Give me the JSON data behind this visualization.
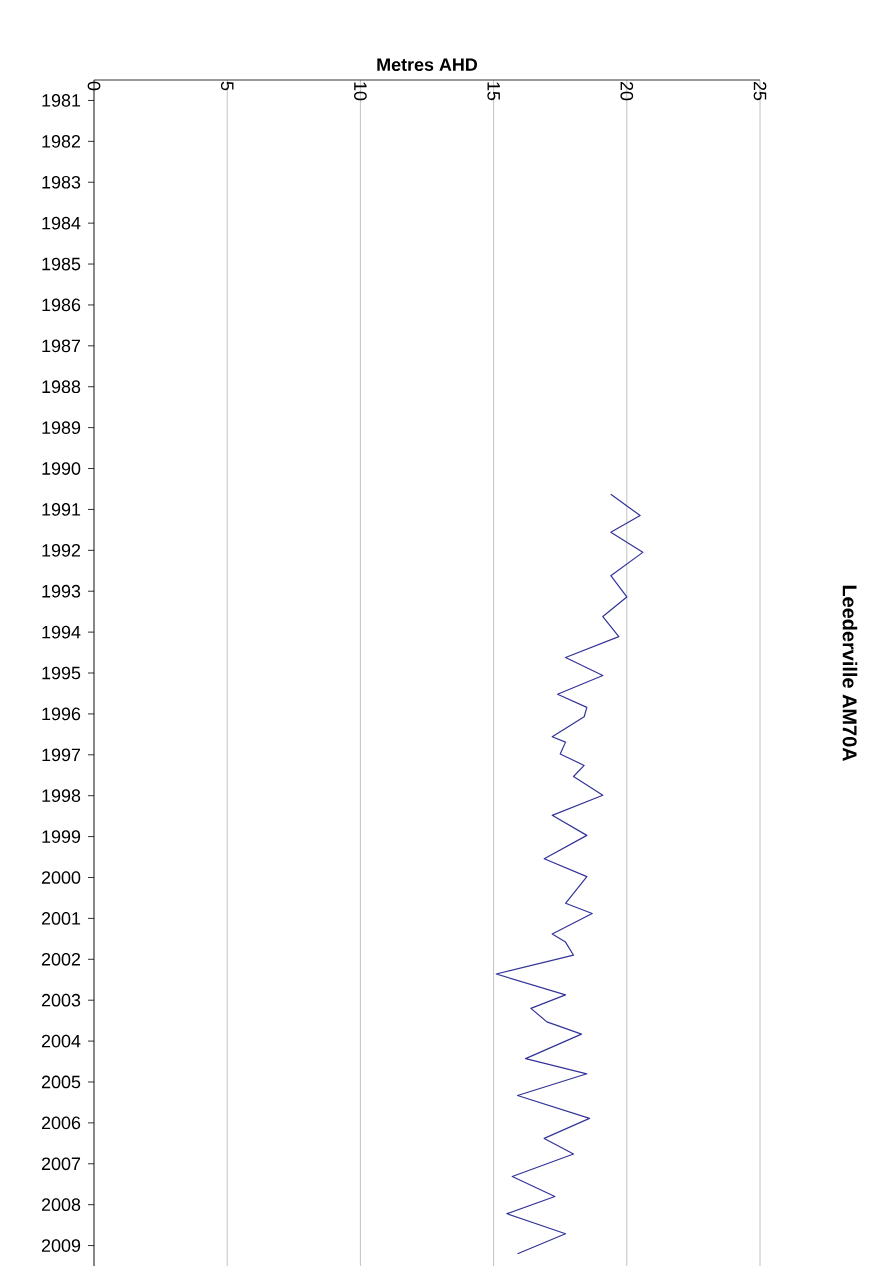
{
  "chart_data": {
    "type": "line",
    "title": "Leederville AM70A",
    "ylabel": "Metres AHD",
    "orientation": "horizontal",
    "grid": "x",
    "marker": "none",
    "ylim": [
      2009.5,
      1980.5
    ],
    "yticks": [
      1981,
      1982,
      1983,
      1984,
      1985,
      1986,
      1987,
      1988,
      1989,
      1990,
      1991,
      1992,
      1993,
      1994,
      1995,
      1996,
      1997,
      1998,
      1999,
      2000,
      2001,
      2002,
      2003,
      2004,
      2005,
      2006,
      2007,
      2008,
      2009
    ],
    "xlim": [
      0,
      25
    ],
    "xticks": [
      0,
      5,
      10,
      15,
      20,
      25
    ],
    "series": [
      {
        "color": "#333399",
        "x": [
          1990.63,
          1991.15,
          1991.56,
          1992.05,
          1992.62,
          1993.14,
          1993.62,
          1994.11,
          1994.62,
          1995.06,
          1995.52,
          1995.84,
          1996.07,
          1996.56,
          1996.69,
          1996.98,
          1997.26,
          1997.53,
          1997.99,
          1998.48,
          1998.97,
          1999.54,
          1999.98,
          2000.63,
          2000.88,
          2001.38,
          2001.58,
          2001.9,
          2002.36,
          2002.87,
          2003.2,
          2003.53,
          2003.83,
          2004.43,
          2004.8,
          2005.33,
          2005.89,
          2006.38,
          2006.76,
          2007.31,
          2007.8,
          2008.22,
          2008.71,
          2009.2
        ],
        "values": [
          19.4,
          20.5,
          19.4,
          20.6,
          19.4,
          20.0,
          19.1,
          19.7,
          17.7,
          19.1,
          17.4,
          18.5,
          18.4,
          17.2,
          17.7,
          17.5,
          18.4,
          18.0,
          19.1,
          17.2,
          18.5,
          16.9,
          18.5,
          17.7,
          18.7,
          17.2,
          17.7,
          18.0,
          15.1,
          17.7,
          16.4,
          17.0,
          18.3,
          16.2,
          18.5,
          15.9,
          18.6,
          16.9,
          18.0,
          15.7,
          17.3,
          15.5,
          17.7,
          15.9
        ]
      }
    ]
  }
}
